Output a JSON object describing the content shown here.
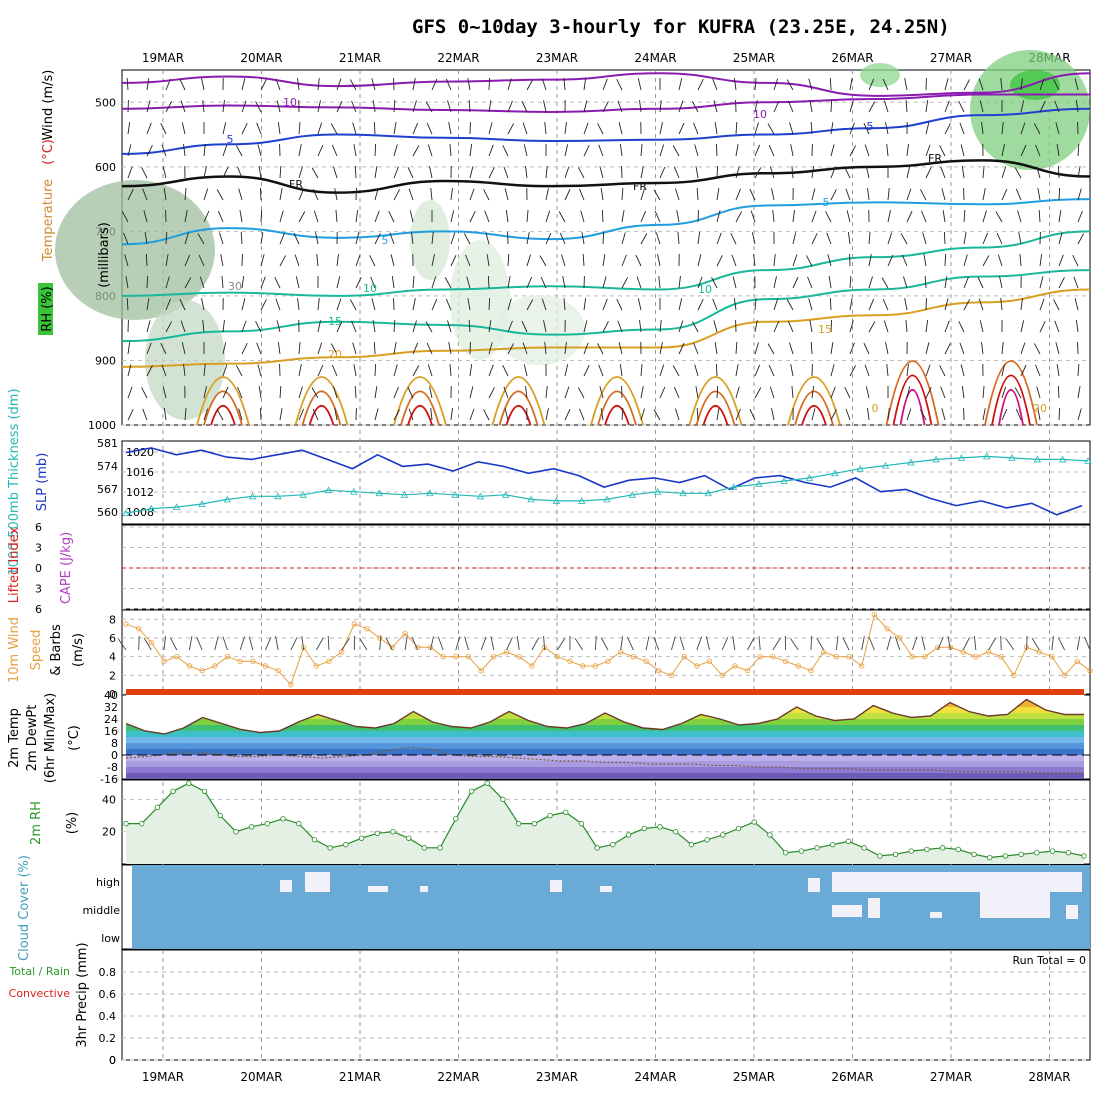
{
  "title": "GFS 0~10day 3-hourly for KUFRA (23.25E, 24.25N)",
  "dates": [
    "19MAR",
    "20MAR",
    "21MAR",
    "22MAR",
    "23MAR",
    "24MAR",
    "25MAR",
    "26MAR",
    "27MAR",
    "28MAR"
  ],
  "colors": {
    "temp_lines": [
      "#8a1ab0",
      "#1f3fd0",
      "#1f9ee0",
      "#19b89a",
      "#d8a020",
      "#d86a20",
      "#d01010"
    ],
    "slp": "#1836c8",
    "thickness": "#22b8b8",
    "wind10": "#e8a040",
    "rh": "#2a8a2a",
    "cloud": "#6aaad6",
    "lifted": "#dd2020",
    "cape": "#b040c0"
  },
  "chart_data": [
    {
      "type": "area",
      "name": "upper_air_cross_section",
      "ylabel": "(millibars)",
      "yticks": [
        500,
        600,
        700,
        800,
        900,
        1000
      ],
      "ylim": [
        450,
        1000
      ],
      "legend_labels": {
        "rh": "RH (%)",
        "temperature": "Temperature",
        "temp_unit": "(°C)",
        "wind": "Wind (m/s)"
      },
      "contour_labels": [
        "10",
        "10",
        "5",
        "5",
        "FR",
        "FR",
        "FR",
        "5",
        "5",
        "10",
        "10",
        "15",
        "15",
        "20",
        "20",
        "30",
        "0"
      ],
      "isotherms": [
        {
          "label": "-10",
          "levels": [
            470,
            460,
            475,
            468,
            465,
            455,
            470,
            490,
            485,
            455
          ]
        },
        {
          "label": "-10b",
          "levels": [
            510,
            505,
            508,
            512,
            515,
            510,
            500,
            495,
            488,
            488
          ]
        },
        {
          "label": "-5",
          "levels": [
            580,
            565,
            550,
            555,
            560,
            558,
            550,
            540,
            520,
            510
          ]
        },
        {
          "label": "FR",
          "levels": [
            630,
            615,
            640,
            622,
            630,
            625,
            610,
            600,
            590,
            615
          ]
        },
        {
          "label": "5",
          "levels": [
            720,
            695,
            710,
            700,
            712,
            690,
            660,
            655,
            658,
            650
          ]
        },
        {
          "label": "10",
          "levels": [
            800,
            795,
            800,
            790,
            785,
            790,
            760,
            740,
            725,
            700
          ]
        },
        {
          "label": "15",
          "levels": [
            870,
            855,
            840,
            845,
            860,
            852,
            805,
            790,
            770,
            760
          ]
        },
        {
          "label": "20",
          "levels": [
            910,
            905,
            895,
            885,
            880,
            880,
            840,
            830,
            810,
            790
          ]
        }
      ]
    },
    {
      "type": "line",
      "name": "slp_thickness",
      "ylabel_left": "1000-500mb Thickness (dm)",
      "ylabel_right": "SLP (mb)",
      "left_ticks": [
        560,
        567,
        574,
        581
      ],
      "right_ticks": [
        1008,
        1012,
        1016,
        1020
      ],
      "series": [
        {
          "name": "SLP",
          "values": [
            1019.5,
            1020.5,
            1019,
            1020,
            1018.5,
            1018,
            1019,
            1020,
            1018,
            1016,
            1019,
            1016.5,
            1017,
            1015.5,
            1017.5,
            1016.5,
            1015,
            1016,
            1014.5,
            1012,
            1013.5,
            1014,
            1013,
            1014.5,
            1011.5,
            1014,
            1014.5,
            1013,
            1012,
            1014,
            1011,
            1011.5,
            1009.5,
            1008,
            1009,
            1007.5,
            1008.5,
            1006,
            1008
          ]
        },
        {
          "name": "Thickness",
          "values": [
            559.5,
            561,
            561.5,
            562.5,
            564,
            565,
            565,
            565.5,
            567,
            566.5,
            566,
            565.5,
            566,
            565.5,
            565,
            565.5,
            564,
            563.5,
            563.5,
            564,
            565.5,
            566.5,
            566,
            566,
            568,
            569,
            570,
            571,
            572.5,
            574,
            575,
            576,
            577,
            577.5,
            578,
            577.5,
            577,
            577,
            576.5
          ]
        }
      ]
    },
    {
      "type": "line",
      "name": "lifted_index_cape",
      "ylabel_left": "Lifted Index",
      "ylabel_right": "CAPE (J/kg)",
      "yticks": [
        "6",
        "3",
        "0",
        "3",
        "6"
      ],
      "series": [
        {
          "name": "Lifted Index reference",
          "values": [
            0
          ]
        }
      ]
    },
    {
      "type": "line",
      "name": "wind10m",
      "ylabel": "10m Wind Speed (m/s) & Barbs",
      "yticks": [
        0,
        2,
        4,
        6,
        8
      ],
      "ylim": [
        0,
        9
      ],
      "series": [
        {
          "name": "Speed",
          "values": [
            7.5,
            7,
            5.5,
            3.5,
            4,
            3,
            2.5,
            3,
            4,
            3.5,
            3.5,
            3,
            2.5,
            1,
            5,
            3,
            3.5,
            4.5,
            7.5,
            7,
            6,
            5,
            6.5,
            5,
            5,
            4,
            4,
            4,
            2.5,
            4,
            4.5,
            4,
            3,
            5,
            4,
            3.5,
            3,
            3,
            3.5,
            4.5,
            4,
            3.5,
            2.5,
            2,
            4,
            3,
            3.5,
            2,
            3,
            2.5,
            4,
            4,
            3.5,
            3,
            2.5,
            4.5,
            4,
            4,
            3,
            8.5,
            7,
            6,
            4,
            4,
            5,
            5,
            4.5,
            4,
            4.5,
            4,
            2,
            5,
            4.5,
            4,
            2,
            3.5,
            2.5
          ]
        }
      ]
    },
    {
      "type": "area",
      "name": "temp_dewpt",
      "ylabel": "2m Temp 2m DewPt (6hr Min/Max) (°C)",
      "yticks": [
        -16,
        -8,
        0,
        8,
        16,
        24,
        32,
        40
      ],
      "ylim": [
        -16,
        40
      ],
      "series": [
        {
          "name": "Temp",
          "values": [
            21,
            16,
            14,
            18,
            25,
            21,
            17,
            15,
            16,
            22,
            27,
            23,
            19,
            18,
            21,
            29,
            22,
            19,
            18,
            22,
            29,
            23,
            19,
            18,
            21,
            28,
            22,
            18,
            17,
            21,
            27,
            24,
            20,
            21,
            24,
            32,
            26,
            23,
            24,
            33,
            28,
            25,
            26,
            35,
            29,
            26,
            27,
            37,
            30,
            27,
            27
          ]
        },
        {
          "name": "DewPt",
          "values": [
            -2,
            -1,
            1,
            2,
            1,
            -1,
            -1,
            0,
            -1,
            -2,
            -1,
            0,
            3,
            5,
            4,
            0,
            -1,
            -1,
            -2,
            -3,
            -4,
            -4,
            -5,
            -5,
            -6,
            -6,
            -6,
            -7,
            -7,
            -8,
            -8,
            -9,
            -9,
            -9,
            -10,
            -10,
            -10,
            -10,
            -11,
            -11,
            -11,
            -11,
            -12,
            -12,
            -12
          ]
        }
      ]
    },
    {
      "type": "area",
      "name": "rh2m",
      "ylabel": "2m RH (%)",
      "yticks": [
        20,
        40
      ],
      "ylim": [
        0,
        52
      ],
      "series": [
        {
          "name": "RH",
          "values": [
            25,
            25,
            35,
            45,
            50,
            45,
            30,
            20,
            23,
            25,
            28,
            25,
            15,
            10,
            12,
            16,
            19,
            20,
            16,
            10,
            10,
            28,
            45,
            50,
            40,
            25,
            25,
            30,
            32,
            25,
            10,
            12,
            18,
            22,
            23,
            20,
            12,
            15,
            18,
            22,
            26,
            18,
            7,
            8,
            10,
            12,
            14,
            10,
            5,
            6,
            8,
            9,
            10,
            9,
            6,
            4,
            5,
            6,
            7,
            8,
            7,
            5
          ]
        }
      ]
    },
    {
      "type": "heatmap",
      "name": "cloud_cover",
      "ylabel": "Cloud Cover (%)",
      "yticks": [
        "high",
        "middle",
        "low"
      ]
    },
    {
      "type": "bar",
      "name": "precip",
      "ylabel": "3hr Precip (mm)",
      "legend": [
        "Total / Rain",
        "Convective"
      ],
      "yticks": [
        0,
        0.2,
        0.4,
        0.6,
        0.8
      ],
      "ylim": [
        0,
        1
      ],
      "run_total_label": "Run Total = 0",
      "values": [
        0,
        0,
        0,
        0,
        0,
        0,
        0,
        0,
        0,
        0
      ]
    }
  ]
}
